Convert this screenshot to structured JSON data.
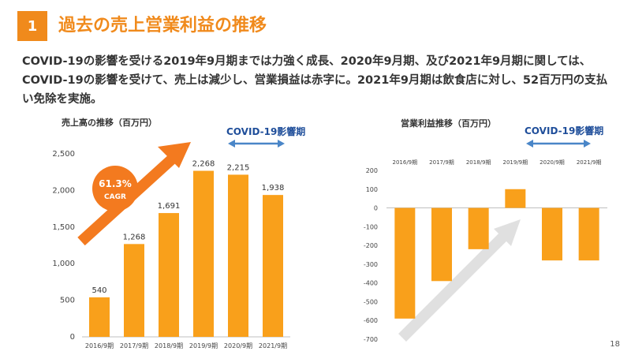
{
  "slide": {
    "number": "1",
    "title": "過去の売上営業利益の推移",
    "summary": "COVID-19の影響を受ける2019年9月期までは力強く成長、2020年9月期、及び2021年9月期に関しては、COVID-19の影響を受けて、売上は減少し、営業損益は赤字に。2021年9月期は飲食店に対し、52百万円の支払い免除を実施。",
    "page": "18"
  },
  "colors": {
    "accent": "#F08A1C",
    "bar": "#F9A01B",
    "covid_arrow": "#4A86C8",
    "covid_text": "#1F4E9A",
    "growth_arrow": "#F37A1F"
  },
  "icons": [
    "cagr-growth-arrow",
    "covid-double-arrow",
    "trend-arrow"
  ],
  "chart_data": [
    {
      "type": "bar",
      "title": "売上高の推移（百万円）",
      "categories": [
        "2016/9期",
        "2017/9期",
        "2018/9期",
        "2019/9期",
        "2020/9期",
        "2021/9期"
      ],
      "values": [
        540,
        1268,
        1691,
        2268,
        2215,
        1938
      ],
      "value_labels": [
        "540",
        "1,268",
        "1,691",
        "2,268",
        "2,215",
        "1,938"
      ],
      "ylim": [
        0,
        2500
      ],
      "yticks": [
        "0",
        "500",
        "1,000",
        "1,500",
        "2,000",
        "2,500"
      ],
      "ytick_values": [
        0,
        500,
        1000,
        1500,
        2000,
        2500
      ],
      "grid": false,
      "annotations": {
        "cagr_value": "61.3%",
        "cagr_label": "CAGR",
        "covid": "COVID-19影響期"
      }
    },
    {
      "type": "bar",
      "title": "営業利益推移（百万円）",
      "categories": [
        "2016/9期",
        "2017/9期",
        "2018/9期",
        "2019/9期",
        "2020/9期",
        "2021/9期"
      ],
      "values": [
        -590,
        -390,
        -220,
        100,
        -280,
        -280
      ],
      "ylim": [
        -700,
        200
      ],
      "yticks": [
        "200",
        "100",
        "0",
        "-100",
        "-200",
        "-300",
        "-400",
        "-500",
        "-600",
        "-700"
      ],
      "ytick_values": [
        200,
        100,
        0,
        -100,
        -200,
        -300,
        -400,
        -500,
        -600,
        -700
      ],
      "grid": false,
      "annotations": {
        "covid": "COVID-19影響期"
      }
    }
  ]
}
